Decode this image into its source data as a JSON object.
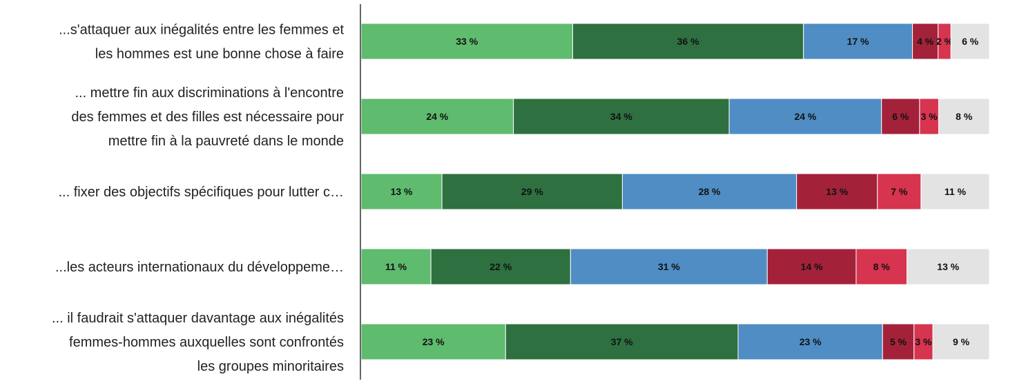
{
  "chart_data": {
    "type": "bar",
    "orientation": "horizontal",
    "stacked": true,
    "categories": [
      [
        "...s'attaquer aux inégalités entre les femmes et",
        "les hommes est une bonne chose à faire"
      ],
      [
        "... mettre fin aux discriminations à l'encontre",
        "des femmes et des filles est nécessaire pour",
        "mettre fin à la pauvreté dans le monde"
      ],
      [
        "... fixer des objectifs spécifiques pour lutter c…"
      ],
      [
        "...les acteurs internationaux du développeme…"
      ],
      [
        "... il faudrait s'attaquer davantage aux inégalités",
        "femmes-hommes auxquelles sont confrontés",
        "les groupes minoritaires"
      ]
    ],
    "series": [
      {
        "color": "#5fbb6e",
        "values": [
          33,
          24,
          13,
          11,
          23
        ]
      },
      {
        "color": "#2e7040",
        "values": [
          36,
          34,
          29,
          22,
          37
        ]
      },
      {
        "color": "#4f8dc4",
        "values": [
          17,
          24,
          28,
          31,
          23
        ]
      },
      {
        "color": "#a3223a",
        "values": [
          4,
          6,
          13,
          14,
          5
        ]
      },
      {
        "color": "#d6344f",
        "values": [
          2,
          3,
          7,
          8,
          3
        ]
      },
      {
        "color": "#e3e3e3",
        "values": [
          6,
          8,
          11,
          13,
          9
        ]
      }
    ],
    "value_suffix": " %",
    "xlim": [
      0,
      100
    ],
    "grid": false,
    "legend": "none"
  }
}
